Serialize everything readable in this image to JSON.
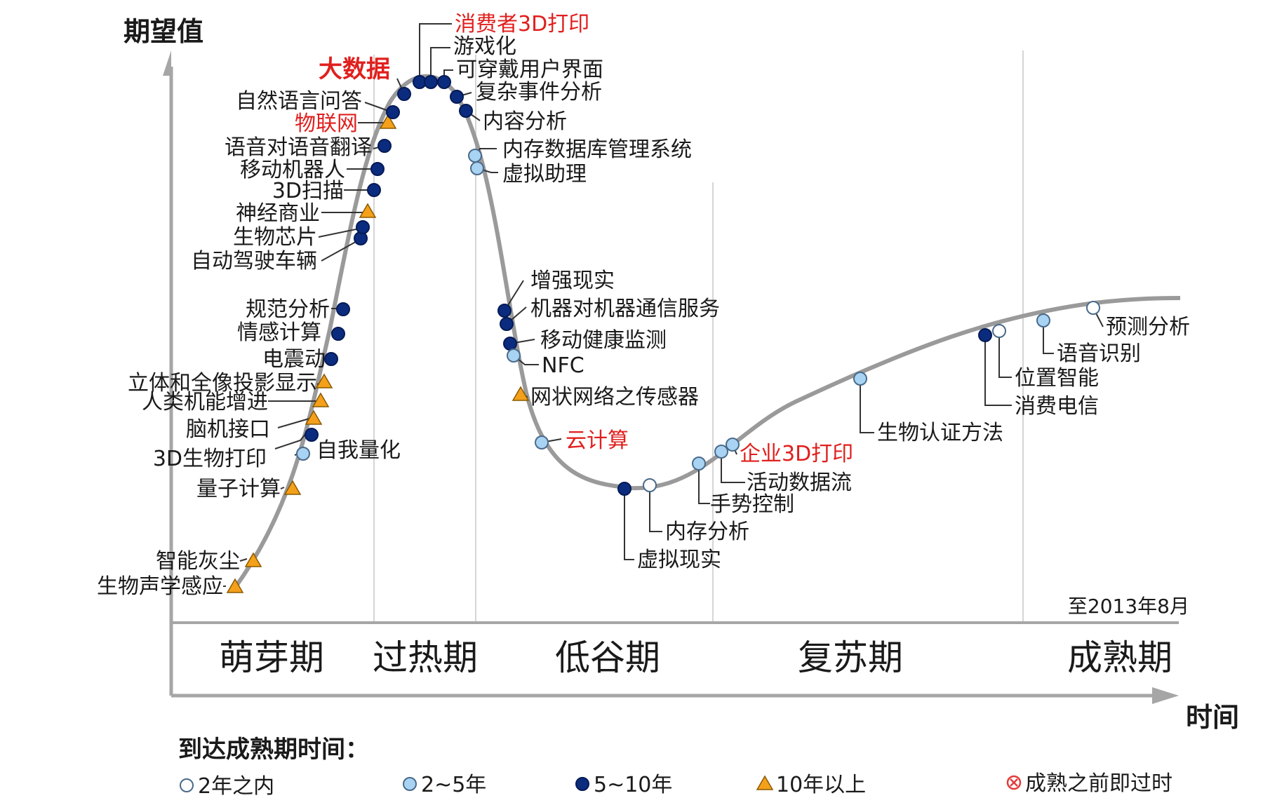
{
  "axes": {
    "y_title": "期望值",
    "x_title": "时间",
    "date_note": "至2013年8月"
  },
  "phases": [
    "萌芽期",
    "过热期",
    "低谷期",
    "复苏期",
    "成熟期"
  ],
  "colors": {
    "curve": "#9a9a9a",
    "axis": "#a6a6a6",
    "divider": "#d5d5d5",
    "two_years": "#ffffff",
    "two_to_five": "#a9d3f2",
    "five_to_ten": "#0b2c7e",
    "over_ten": "#f5a01a",
    "obsolete": "#e23b3b",
    "highlight_text": "#e0201e"
  },
  "legend": {
    "title": "到达成熟期时间：",
    "items": [
      {
        "type": "two_years",
        "label": "2年之内"
      },
      {
        "type": "two_to_five",
        "label": "2~5年"
      },
      {
        "type": "five_to_ten",
        "label": "5~10年"
      },
      {
        "type": "over_ten",
        "label": "10年以上"
      },
      {
        "type": "obsolete",
        "label": "成熟之前即过时"
      }
    ]
  },
  "technologies": [
    {
      "label": "生物声学感应",
      "marker": "over_ten"
    },
    {
      "label": "智能灰尘",
      "marker": "over_ten"
    },
    {
      "label": "量子计算",
      "marker": "over_ten"
    },
    {
      "label": "自我量化",
      "marker": "two_to_five"
    },
    {
      "label": "3D生物打印",
      "marker": "five_to_ten"
    },
    {
      "label": "脑机接口",
      "marker": "over_ten"
    },
    {
      "label": "人类机能增进",
      "marker": "over_ten"
    },
    {
      "label": "立体和全像投影显示",
      "marker": "over_ten"
    },
    {
      "label": "电震动",
      "marker": "five_to_ten"
    },
    {
      "label": "情感计算",
      "marker": "five_to_ten"
    },
    {
      "label": "规范分析",
      "marker": "five_to_ten"
    },
    {
      "label": "自动驾驶车辆",
      "marker": "five_to_ten"
    },
    {
      "label": "生物芯片",
      "marker": "five_to_ten"
    },
    {
      "label": "神经商业",
      "marker": "over_ten"
    },
    {
      "label": "3D扫描",
      "marker": "five_to_ten"
    },
    {
      "label": "移动机器人",
      "marker": "five_to_ten"
    },
    {
      "label": "语音对语音翻译",
      "marker": "five_to_ten"
    },
    {
      "label": "物联网",
      "marker": "over_ten",
      "highlight": true
    },
    {
      "label": "自然语言问答",
      "marker": "five_to_ten"
    },
    {
      "label": "大数据",
      "marker": "five_to_ten",
      "highlight": true,
      "bold": true
    },
    {
      "label": "消费者3D打印",
      "marker": "five_to_ten",
      "highlight": true
    },
    {
      "label": "游戏化",
      "marker": "five_to_ten"
    },
    {
      "label": "可穿戴用户界面",
      "marker": "five_to_ten"
    },
    {
      "label": "复杂事件分析",
      "marker": "five_to_ten"
    },
    {
      "label": "内容分析",
      "marker": "five_to_ten"
    },
    {
      "label": "内存数据库管理系统",
      "marker": "two_to_five"
    },
    {
      "label": "虚拟助理",
      "marker": "two_to_five"
    },
    {
      "label": "增强现实",
      "marker": "five_to_ten"
    },
    {
      "label": "机器对机器通信服务",
      "marker": "five_to_ten"
    },
    {
      "label": "移动健康监测",
      "marker": "five_to_ten"
    },
    {
      "label": "NFC",
      "marker": "two_to_five"
    },
    {
      "label": "网状网络之传感器",
      "marker": "over_ten"
    },
    {
      "label": "云计算",
      "marker": "two_to_five",
      "highlight": true
    },
    {
      "label": "虚拟现实",
      "marker": "five_to_ten"
    },
    {
      "label": "内存分析",
      "marker": "two_years"
    },
    {
      "label": "手势控制",
      "marker": "two_to_five"
    },
    {
      "label": "活动数据流",
      "marker": "two_to_five"
    },
    {
      "label": "企业3D打印",
      "marker": "two_to_five",
      "highlight": true
    },
    {
      "label": "生物认证方法",
      "marker": "two_to_five"
    },
    {
      "label": "消费电信",
      "marker": "five_to_ten"
    },
    {
      "label": "位置智能",
      "marker": "two_years"
    },
    {
      "label": "语音识别",
      "marker": "two_to_five"
    },
    {
      "label": "预测分析",
      "marker": "two_years"
    }
  ]
}
